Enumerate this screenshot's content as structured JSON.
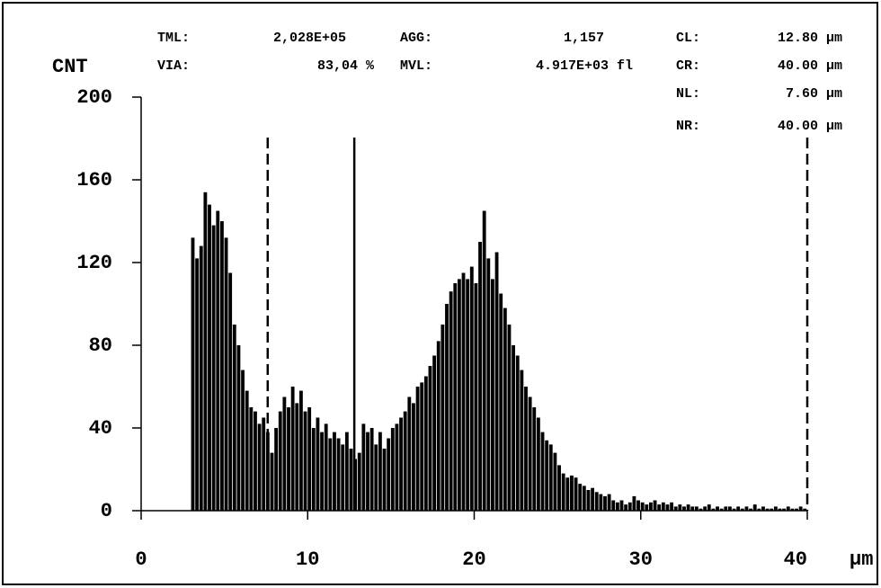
{
  "chart_data": {
    "type": "histogram",
    "y_label": "CNT",
    "x_label": "µm",
    "stats": [
      {
        "label": "TML:",
        "value": "2,028E+05"
      },
      {
        "label": "AGG:",
        "value": "1,157"
      },
      {
        "label": "CL:",
        "value": "12.80 µm"
      },
      {
        "label": "VIA:",
        "value": "83,04 %"
      },
      {
        "label": "MVL:",
        "value": "4.917E+03 fl"
      },
      {
        "label": "CR:",
        "value": "40.00 µm"
      },
      {
        "label": "NL:",
        "value": "7.60 µm"
      },
      {
        "label": "NR:",
        "value": "40.00 µm"
      }
    ],
    "color": "#000000",
    "xlim": [
      0,
      40
    ],
    "ylim": [
      0,
      200
    ],
    "xticks": [
      0,
      10,
      20,
      30,
      40
    ],
    "yticks": [
      0,
      40,
      80,
      120,
      160,
      200
    ],
    "markers": [
      {
        "x": 7.6,
        "dashed": true
      },
      {
        "x": 12.8,
        "dashed": false
      },
      {
        "x": 40,
        "dashed": true
      }
    ],
    "bins": [
      3,
      3.25,
      3.5,
      3.75,
      4,
      4.25,
      4.5,
      4.75,
      5,
      5.25,
      5.5,
      5.75,
      6,
      6.25,
      6.5,
      6.75,
      7,
      7.25,
      7.5,
      7.75,
      8,
      8.25,
      8.5,
      8.75,
      9,
      9.25,
      9.5,
      9.75,
      10,
      10.25,
      10.5,
      10.75,
      11,
      11.25,
      11.5,
      11.75,
      12,
      12.25,
      12.5,
      12.75,
      13,
      13.25,
      13.5,
      13.75,
      14,
      14.25,
      14.5,
      14.75,
      15,
      15.25,
      15.5,
      15.75,
      16,
      16.25,
      16.5,
      16.75,
      17,
      17.25,
      17.5,
      17.75,
      18,
      18.25,
      18.5,
      18.75,
      19,
      19.25,
      19.5,
      19.75,
      20,
      20.25,
      20.5,
      20.75,
      21,
      21.25,
      21.5,
      21.75,
      22,
      22.25,
      22.5,
      22.75,
      23,
      23.25,
      23.5,
      23.75,
      24,
      24.25,
      24.5,
      24.75,
      25,
      25.25,
      25.5,
      25.75,
      26,
      26.25,
      26.5,
      26.75,
      27,
      27.25,
      27.5,
      27.75,
      28,
      28.25,
      28.5,
      28.75,
      29,
      29.25,
      29.5,
      29.75,
      30,
      30.25,
      30.5,
      30.75,
      31,
      31.25,
      31.5,
      31.75,
      32,
      32.25,
      32.5,
      32.75,
      33,
      33.25,
      33.5,
      33.75,
      34,
      34.25,
      34.5,
      34.75,
      35,
      35.25,
      35.5,
      35.75,
      36,
      36.25,
      36.5,
      36.75,
      37,
      37.25,
      37.5,
      37.75,
      38,
      38.25,
      38.5,
      38.75,
      39,
      39.25,
      39.5,
      39.75,
      40
    ],
    "values": [
      132,
      122,
      128,
      154,
      148,
      138,
      145,
      140,
      132,
      115,
      90,
      80,
      68,
      58,
      50,
      48,
      42,
      45,
      38,
      28,
      40,
      48,
      55,
      50,
      60,
      52,
      58,
      48,
      50,
      40,
      45,
      38,
      42,
      35,
      38,
      35,
      32,
      38,
      30,
      25,
      28,
      42,
      38,
      40,
      32,
      38,
      30,
      35,
      40,
      42,
      45,
      48,
      55,
      52,
      60,
      62,
      65,
      70,
      75,
      82,
      90,
      100,
      106,
      110,
      112,
      115,
      112,
      118,
      110,
      130,
      145,
      122,
      112,
      125,
      105,
      98,
      90,
      80,
      75,
      68,
      60,
      55,
      50,
      45,
      38,
      34,
      32,
      28,
      22,
      18,
      16,
      17,
      16,
      13,
      12,
      10,
      11,
      9,
      8,
      7,
      8,
      5,
      4,
      5,
      3,
      4,
      7,
      5,
      4,
      3,
      4,
      5,
      3,
      4,
      3,
      4,
      2,
      3,
      2,
      3,
      2,
      2,
      1,
      2,
      3,
      1,
      2,
      1,
      2,
      2,
      1,
      2,
      1,
      2,
      1,
      3,
      1,
      2,
      1,
      1,
      2,
      1,
      1,
      2,
      1,
      1,
      2,
      1
    ]
  }
}
